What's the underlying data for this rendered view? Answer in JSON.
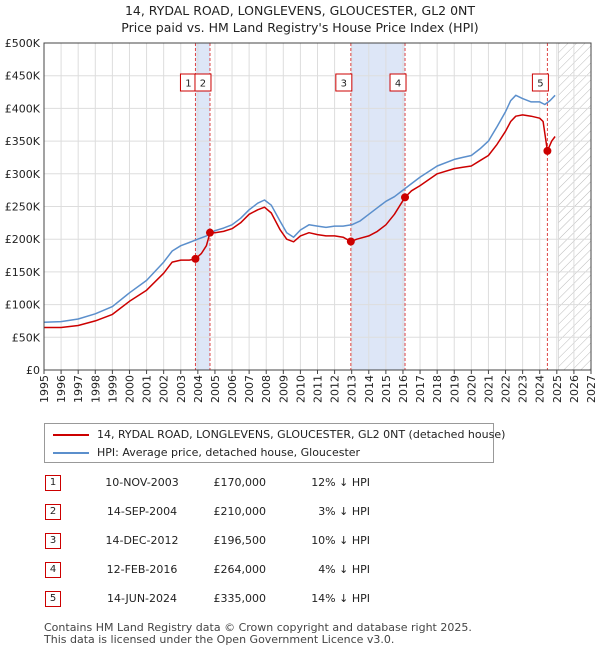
{
  "chart_data": {
    "type": "line",
    "title": "14, RYDAL ROAD, LONGLEVENS, GLOUCESTER, GL2 0NT",
    "subtitle": "Price paid vs. HM Land Registry's House Price Index (HPI)",
    "xlabel": "",
    "ylabel": "",
    "xlim": [
      1995,
      2027
    ],
    "ylim": [
      0,
      500000
    ],
    "y_ticks": [
      0,
      50000,
      100000,
      150000,
      200000,
      250000,
      300000,
      350000,
      400000,
      450000,
      500000
    ],
    "y_tick_labels": [
      "£0",
      "£50K",
      "£100K",
      "£150K",
      "£200K",
      "£250K",
      "£300K",
      "£350K",
      "£400K",
      "£450K",
      "£500K"
    ],
    "x_ticks": [
      1995,
      1996,
      1997,
      1998,
      1999,
      2000,
      2001,
      2002,
      2003,
      2004,
      2005,
      2006,
      2007,
      2008,
      2009,
      2010,
      2011,
      2012,
      2013,
      2014,
      2015,
      2016,
      2017,
      2018,
      2019,
      2020,
      2021,
      2022,
      2023,
      2024,
      2025,
      2026,
      2027
    ],
    "grid": true,
    "forecast_start": 2025.1,
    "colors": {
      "property": "#cc0000",
      "hpi": "#5b8fcc",
      "band": "#dde6f7",
      "vline": "#dd4444"
    },
    "series": [
      {
        "name": "14, RYDAL ROAD, LONGLEVENS, GLOUCESTER, GL2 0NT (detached house)",
        "color": "#cc0000",
        "x": [
          1995,
          1996,
          1997,
          1998,
          1999,
          2000,
          2001,
          2002,
          2002.5,
          2003,
          2003.5,
          2003.86,
          2004.2,
          2004.5,
          2004.71,
          2005,
          2005.5,
          2006,
          2006.5,
          2007,
          2007.5,
          2007.9,
          2008.3,
          2008.8,
          2009.2,
          2009.6,
          2010,
          2010.5,
          2011,
          2011.5,
          2012,
          2012.5,
          2012.95,
          2013.3,
          2014,
          2014.5,
          2015,
          2015.5,
          2016.12,
          2016.5,
          2017,
          2018,
          2019,
          2019.5,
          2020,
          2020.5,
          2021,
          2021.5,
          2022,
          2022.3,
          2022.6,
          2023,
          2023.5,
          2024,
          2024.2,
          2024.45,
          2024.7,
          2024.9
        ],
        "values": [
          65000,
          65000,
          68000,
          75000,
          85000,
          105000,
          122000,
          148000,
          165000,
          168000,
          168000,
          170000,
          178000,
          190000,
          210000,
          210000,
          212000,
          216000,
          225000,
          238000,
          245000,
          249000,
          240000,
          215000,
          200000,
          196000,
          205000,
          210000,
          207000,
          205000,
          205000,
          203000,
          196500,
          200000,
          205000,
          212000,
          222000,
          238000,
          264000,
          274000,
          282000,
          300000,
          308000,
          310000,
          312000,
          320000,
          328000,
          345000,
          365000,
          380000,
          388000,
          390000,
          388000,
          385000,
          380000,
          335000,
          350000,
          357000
        ]
      },
      {
        "name": "HPI: Average price, detached house, Gloucester",
        "color": "#5b8fcc",
        "x": [
          1995,
          1996,
          1997,
          1998,
          1999,
          2000,
          2001,
          2002,
          2002.5,
          2003,
          2003.5,
          2004,
          2004.5,
          2005,
          2005.5,
          2006,
          2006.5,
          2007,
          2007.5,
          2007.9,
          2008.3,
          2008.8,
          2009.2,
          2009.6,
          2010,
          2010.5,
          2011,
          2011.5,
          2012,
          2012.5,
          2013,
          2013.5,
          2014,
          2014.5,
          2015,
          2015.5,
          2016,
          2016.5,
          2017,
          2018,
          2019,
          2019.5,
          2020,
          2020.5,
          2021,
          2021.5,
          2022,
          2022.3,
          2022.6,
          2023,
          2023.5,
          2024,
          2024.3,
          2024.6,
          2024.9
        ],
        "values": [
          73000,
          74000,
          78000,
          86000,
          97000,
          118000,
          137000,
          165000,
          182000,
          190000,
          195000,
          200000,
          205000,
          213000,
          217000,
          222000,
          232000,
          245000,
          255000,
          260000,
          252000,
          228000,
          210000,
          203000,
          214000,
          222000,
          220000,
          218000,
          220000,
          220000,
          222000,
          228000,
          238000,
          248000,
          258000,
          265000,
          275000,
          285000,
          295000,
          312000,
          322000,
          325000,
          328000,
          338000,
          350000,
          372000,
          395000,
          412000,
          420000,
          415000,
          410000,
          410000,
          406000,
          412000,
          420000
        ]
      }
    ],
    "transactions": [
      {
        "num": "1",
        "x": 2003.86,
        "value": 170000,
        "date": "10-NOV-2003",
        "price": "£170,000",
        "hpi": "12% ↓ HPI"
      },
      {
        "num": "2",
        "x": 2004.71,
        "value": 210000,
        "date": "14-SEP-2004",
        "price": "£210,000",
        "hpi": "3% ↓ HPI"
      },
      {
        "num": "3",
        "x": 2012.95,
        "value": 196500,
        "date": "14-DEC-2012",
        "price": "£196,500",
        "hpi": "10% ↓ HPI"
      },
      {
        "num": "4",
        "x": 2016.12,
        "value": 264000,
        "date": "12-FEB-2016",
        "price": "£264,000",
        "hpi": "4% ↓ HPI"
      },
      {
        "num": "5",
        "x": 2024.45,
        "value": 335000,
        "date": "14-JUN-2024",
        "price": "£335,000",
        "hpi": "14% ↓ HPI"
      }
    ],
    "shaded_bands": [
      [
        2003.86,
        2004.71
      ],
      [
        2012.95,
        2016.12
      ]
    ]
  },
  "legend": {
    "property_label": "14, RYDAL ROAD, LONGLEVENS, GLOUCESTER, GL2 0NT (detached house)",
    "hpi_label": "HPI: Average price, detached house, Gloucester"
  },
  "footer": {
    "line1": "Contains HM Land Registry data © Crown copyright and database right 2025.",
    "line2": "This data is licensed under the Open Government Licence v3.0."
  }
}
